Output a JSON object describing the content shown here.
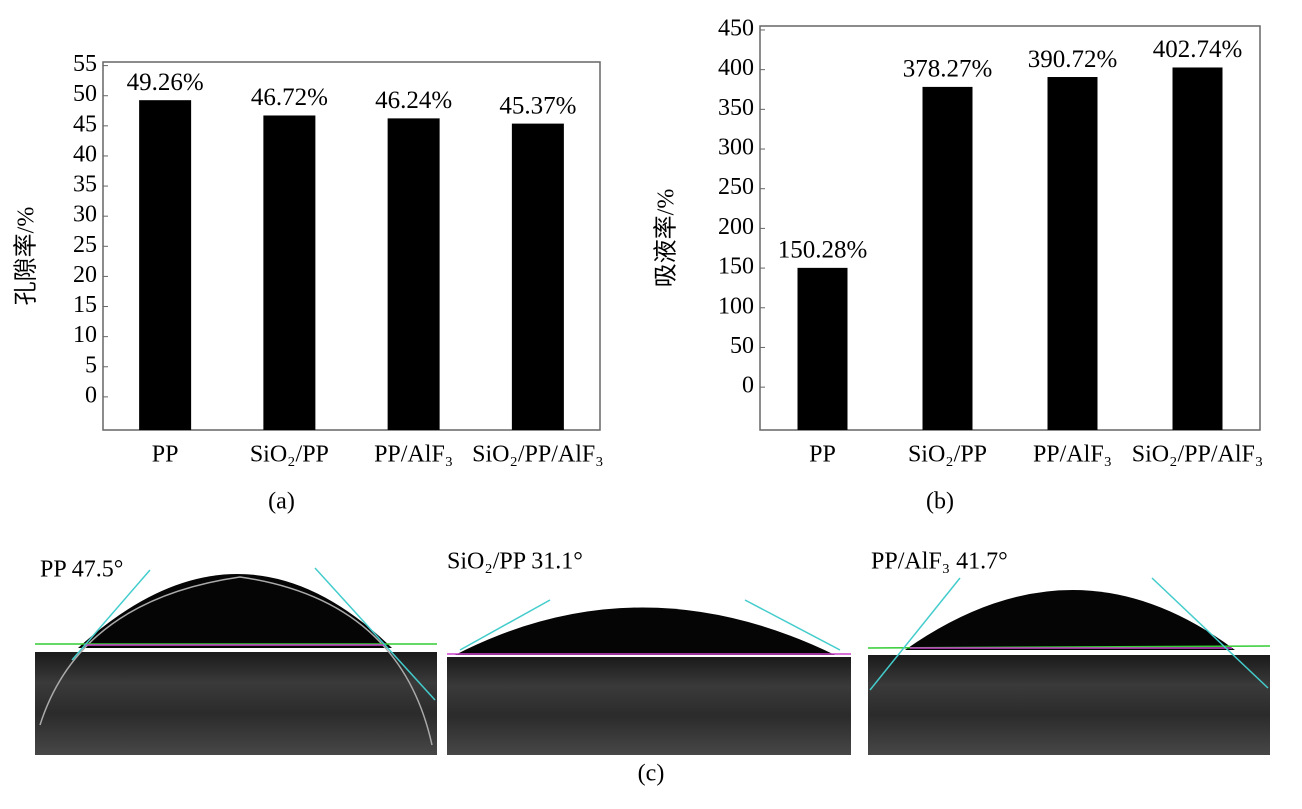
{
  "chart_data": [
    {
      "type": "bar",
      "caption": "(a)",
      "y_label": "孔隙率/%",
      "categories": [
        "PP",
        "SiO₂/PP",
        "PP/AlF₃",
        "SiO₂/PP/AlF₃"
      ],
      "values": [
        49.26,
        46.72,
        46.24,
        45.37
      ],
      "value_labels": [
        "49.26%",
        "46.72%",
        "46.24%",
        "45.37%"
      ],
      "color": "#000000",
      "ylim": [
        -5.5,
        55.6
      ],
      "yticks": [
        0,
        5,
        10,
        15,
        20,
        25,
        30,
        35,
        40,
        45,
        50,
        55
      ],
      "grid": false
    },
    {
      "type": "bar",
      "caption": "(b)",
      "y_label": "吸液率/%",
      "categories": [
        "PP",
        "SiO₂/PP",
        "PP/AlF₃",
        "SiO₂/PP/AlF₃"
      ],
      "values": [
        150.28,
        378.27,
        390.72,
        402.74
      ],
      "value_labels": [
        "150.28%",
        "378.27%",
        "390.72%",
        "402.74%"
      ],
      "color": "#000000",
      "ylim": [
        -54,
        455
      ],
      "yticks": [
        0,
        50,
        100,
        150,
        200,
        250,
        300,
        350,
        400,
        450
      ],
      "grid": false
    }
  ],
  "panel_c": {
    "caption": "(c)",
    "images": [
      {
        "label": "PP 47.5°"
      },
      {
        "label": "SiO₂/PP 31.1°"
      },
      {
        "label": "PP/AlF₃ 41.7°"
      }
    ]
  }
}
